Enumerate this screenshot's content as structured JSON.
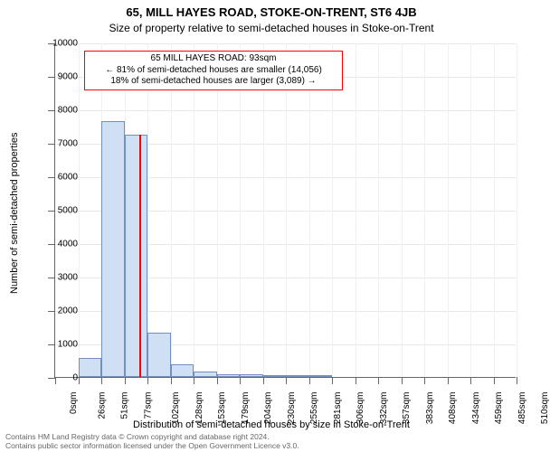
{
  "title_main": "65, MILL HAYES ROAD, STOKE-ON-TRENT, ST6 4JB",
  "title_sub": "Size of property relative to semi-detached houses in Stoke-on-Trent",
  "chart": {
    "type": "histogram",
    "xlabel": "Distribution of semi-detached houses by size in Stoke-on-Trent",
    "ylabel": "Number of semi-detached properties",
    "background_color": "#ffffff",
    "grid_color": "#e8e8e8",
    "axis_color": "#666666",
    "bar_fill": "#cfe0f5",
    "bar_stroke": "#7090c0",
    "marker_color": "#ff0000",
    "ylim": [
      0,
      10000
    ],
    "ytick_step": 1000,
    "x_bin_width": 25.5,
    "x_ticks": [
      0,
      26,
      51,
      77,
      102,
      128,
      153,
      179,
      204,
      230,
      255,
      281,
      306,
      332,
      357,
      383,
      408,
      434,
      459,
      485,
      510
    ],
    "x_tick_unit": "sqm",
    "bars": [
      {
        "x0": 0,
        "x1": 26,
        "value": 0
      },
      {
        "x0": 26,
        "x1": 51,
        "value": 580
      },
      {
        "x0": 51,
        "x1": 77,
        "value": 7650
      },
      {
        "x0": 77,
        "x1": 102,
        "value": 7250
      },
      {
        "x0": 102,
        "x1": 128,
        "value": 1320
      },
      {
        "x0": 128,
        "x1": 153,
        "value": 370
      },
      {
        "x0": 153,
        "x1": 179,
        "value": 170
      },
      {
        "x0": 179,
        "x1": 204,
        "value": 90
      },
      {
        "x0": 204,
        "x1": 230,
        "value": 90
      },
      {
        "x0": 230,
        "x1": 255,
        "value": 40
      },
      {
        "x0": 255,
        "x1": 281,
        "value": 10
      },
      {
        "x0": 281,
        "x1": 306,
        "value": 10
      },
      {
        "x0": 306,
        "x1": 332,
        "value": 0
      },
      {
        "x0": 332,
        "x1": 357,
        "value": 0
      },
      {
        "x0": 357,
        "x1": 383,
        "value": 0
      },
      {
        "x0": 383,
        "x1": 408,
        "value": 0
      },
      {
        "x0": 408,
        "x1": 434,
        "value": 0
      },
      {
        "x0": 434,
        "x1": 459,
        "value": 0
      },
      {
        "x0": 459,
        "x1": 485,
        "value": 0
      },
      {
        "x0": 485,
        "x1": 510,
        "value": 0
      }
    ],
    "marker": {
      "x_value": 93,
      "height_value": 7250
    },
    "annotation": {
      "line1": "65 MILL HAYES ROAD: 93sqm",
      "line2": "← 81% of semi-detached houses are smaller (14,056)",
      "line3": "18% of semi-detached houses are larger (3,089) →",
      "border_color": "#ff0000",
      "background_color": "#ffffff",
      "fontsize": 10
    }
  },
  "footer_line1": "Contains HM Land Registry data © Crown copyright and database right 2024.",
  "footer_line2": "Contains public sector information licensed under the Open Government Licence v3.0."
}
